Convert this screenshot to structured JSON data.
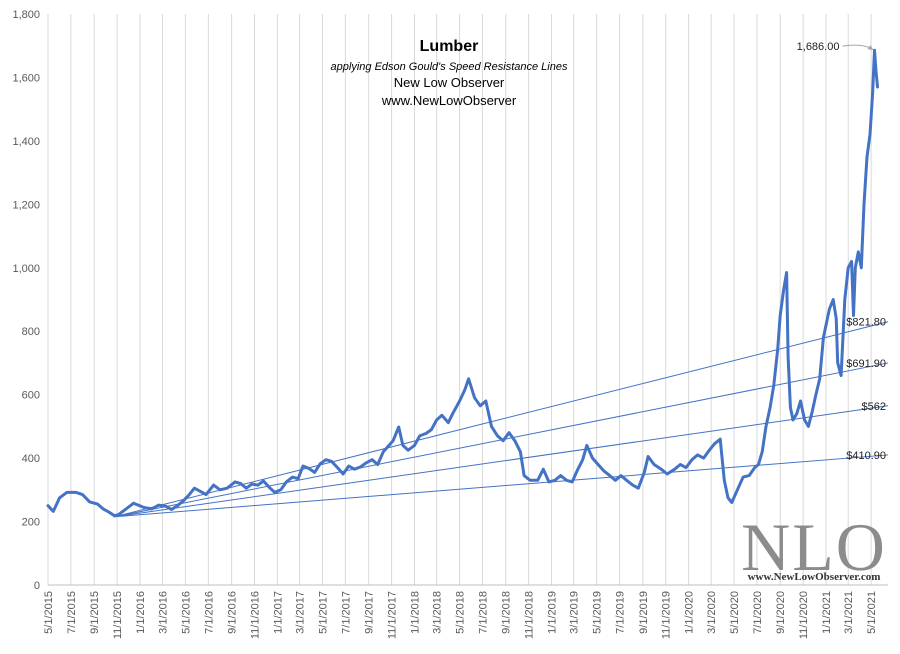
{
  "chart_data": {
    "type": "line",
    "title": "Lumber",
    "subtitle": "applying Edson  Gould's Speed Resistance  Lines",
    "credit_name": "New Low Observer",
    "credit_url": "www.NewLowObserver",
    "ylim": [
      0,
      1800
    ],
    "yticks": [
      "0",
      "200",
      "400",
      "600",
      "800",
      "1,000",
      "1,200",
      "1,400",
      "1,600",
      "1,800"
    ],
    "ytick_values": [
      0,
      200,
      400,
      600,
      800,
      1000,
      1200,
      1400,
      1600,
      1800
    ],
    "xlim": [
      "2015-05-01",
      "2021-06-15"
    ],
    "xticks": [
      "5/1/2015",
      "7/1/2015",
      "9/1/2015",
      "11/1/2015",
      "1/1/2016",
      "3/1/2016",
      "5/1/2016",
      "7/1/2016",
      "9/1/2016",
      "11/1/2016",
      "1/1/2017",
      "3/1/2017",
      "5/1/2017",
      "7/1/2017",
      "9/1/2017",
      "11/1/2017",
      "1/1/2018",
      "3/1/2018",
      "5/1/2018",
      "7/1/2018",
      "9/1/2018",
      "11/1/2018",
      "1/1/2019",
      "3/1/2019",
      "5/1/2019",
      "7/1/2019",
      "9/1/2019",
      "11/1/2019",
      "1/1/2020",
      "3/1/2020",
      "5/1/2020",
      "7/1/2020",
      "9/1/2020",
      "11/1/2020",
      "1/1/2021",
      "3/1/2021",
      "5/1/2021"
    ],
    "grid": "vertical",
    "series": [
      {
        "color": "#4472C4",
        "points": [
          [
            "2015-05-01",
            250
          ],
          [
            "2015-05-15",
            232
          ],
          [
            "2015-06-01",
            275
          ],
          [
            "2015-06-20",
            292
          ],
          [
            "2015-07-15",
            292
          ],
          [
            "2015-08-01",
            285
          ],
          [
            "2015-08-20",
            262
          ],
          [
            "2015-09-10",
            255
          ],
          [
            "2015-09-25",
            240
          ],
          [
            "2015-10-10",
            230
          ],
          [
            "2015-10-25",
            218
          ],
          [
            "2015-11-05",
            222
          ],
          [
            "2015-11-25",
            240
          ],
          [
            "2015-12-15",
            258
          ],
          [
            "2016-01-10",
            245
          ],
          [
            "2016-02-01",
            240
          ],
          [
            "2016-02-20",
            252
          ],
          [
            "2016-03-10",
            248
          ],
          [
            "2016-03-25",
            238
          ],
          [
            "2016-04-10",
            250
          ],
          [
            "2016-04-25",
            265
          ],
          [
            "2016-05-10",
            283
          ],
          [
            "2016-05-25",
            305
          ],
          [
            "2016-06-10",
            295
          ],
          [
            "2016-06-25",
            285
          ],
          [
            "2016-07-15",
            315
          ],
          [
            "2016-08-01",
            300
          ],
          [
            "2016-08-20",
            305
          ],
          [
            "2016-09-10",
            325
          ],
          [
            "2016-09-25",
            320
          ],
          [
            "2016-10-10",
            305
          ],
          [
            "2016-10-25",
            318
          ],
          [
            "2016-11-10",
            315
          ],
          [
            "2016-11-25",
            328
          ],
          [
            "2016-12-10",
            308
          ],
          [
            "2016-12-25",
            292
          ],
          [
            "2017-01-10",
            300
          ],
          [
            "2017-01-25",
            325
          ],
          [
            "2017-02-10",
            340
          ],
          [
            "2017-02-25",
            335
          ],
          [
            "2017-03-10",
            375
          ],
          [
            "2017-03-25",
            368
          ],
          [
            "2017-04-10",
            355
          ],
          [
            "2017-04-25",
            382
          ],
          [
            "2017-05-10",
            395
          ],
          [
            "2017-05-25",
            390
          ],
          [
            "2017-06-10",
            370
          ],
          [
            "2017-06-25",
            350
          ],
          [
            "2017-07-10",
            375
          ],
          [
            "2017-07-25",
            365
          ],
          [
            "2017-08-10",
            372
          ],
          [
            "2017-08-25",
            385
          ],
          [
            "2017-09-10",
            395
          ],
          [
            "2017-09-25",
            380
          ],
          [
            "2017-10-10",
            420
          ],
          [
            "2017-10-25",
            440
          ],
          [
            "2017-11-05",
            455
          ],
          [
            "2017-11-20",
            498
          ],
          [
            "2017-12-01",
            440
          ],
          [
            "2017-12-15",
            425
          ],
          [
            "2018-01-01",
            440
          ],
          [
            "2018-01-15",
            470
          ],
          [
            "2018-02-01",
            478
          ],
          [
            "2018-02-15",
            490
          ],
          [
            "2018-03-01",
            520
          ],
          [
            "2018-03-15",
            535
          ],
          [
            "2018-04-01",
            512
          ],
          [
            "2018-04-15",
            545
          ],
          [
            "2018-05-01",
            580
          ],
          [
            "2018-05-15",
            615
          ],
          [
            "2018-05-25",
            650
          ],
          [
            "2018-06-10",
            590
          ],
          [
            "2018-06-25",
            565
          ],
          [
            "2018-07-10",
            580
          ],
          [
            "2018-07-25",
            500
          ],
          [
            "2018-08-10",
            470
          ],
          [
            "2018-08-25",
            455
          ],
          [
            "2018-09-10",
            480
          ],
          [
            "2018-09-25",
            455
          ],
          [
            "2018-10-10",
            420
          ],
          [
            "2018-10-20",
            345
          ],
          [
            "2018-11-05",
            330
          ],
          [
            "2018-11-25",
            330
          ],
          [
            "2018-12-10",
            365
          ],
          [
            "2018-12-25",
            325
          ],
          [
            "2019-01-10",
            330
          ],
          [
            "2019-01-25",
            345
          ],
          [
            "2019-02-10",
            330
          ],
          [
            "2019-02-25",
            325
          ],
          [
            "2019-03-10",
            360
          ],
          [
            "2019-03-25",
            395
          ],
          [
            "2019-04-05",
            440
          ],
          [
            "2019-04-20",
            400
          ],
          [
            "2019-05-05",
            380
          ],
          [
            "2019-05-20",
            360
          ],
          [
            "2019-06-05",
            345
          ],
          [
            "2019-06-20",
            330
          ],
          [
            "2019-07-05",
            345
          ],
          [
            "2019-07-20",
            330
          ],
          [
            "2019-08-05",
            315
          ],
          [
            "2019-08-20",
            305
          ],
          [
            "2019-09-05",
            355
          ],
          [
            "2019-09-15",
            405
          ],
          [
            "2019-10-01",
            380
          ],
          [
            "2019-10-20",
            365
          ],
          [
            "2019-11-05",
            350
          ],
          [
            "2019-11-25",
            365
          ],
          [
            "2019-12-10",
            380
          ],
          [
            "2019-12-25",
            370
          ],
          [
            "2020-01-10",
            395
          ],
          [
            "2020-01-25",
            410
          ],
          [
            "2020-02-10",
            400
          ],
          [
            "2020-02-25",
            425
          ],
          [
            "2020-03-10",
            445
          ],
          [
            "2020-03-25",
            460
          ],
          [
            "2020-04-05",
            330
          ],
          [
            "2020-04-15",
            275
          ],
          [
            "2020-04-25",
            260
          ],
          [
            "2020-05-10",
            300
          ],
          [
            "2020-05-25",
            340
          ],
          [
            "2020-06-10",
            345
          ],
          [
            "2020-06-25",
            370
          ],
          [
            "2020-07-05",
            380
          ],
          [
            "2020-07-15",
            420
          ],
          [
            "2020-07-25",
            500
          ],
          [
            "2020-08-05",
            560
          ],
          [
            "2020-08-15",
            630
          ],
          [
            "2020-08-25",
            740
          ],
          [
            "2020-09-01",
            850
          ],
          [
            "2020-09-10",
            930
          ],
          [
            "2020-09-18",
            985
          ],
          [
            "2020-09-22",
            720
          ],
          [
            "2020-09-28",
            560
          ],
          [
            "2020-10-05",
            520
          ],
          [
            "2020-10-15",
            540
          ],
          [
            "2020-10-25",
            580
          ],
          [
            "2020-11-05",
            520
          ],
          [
            "2020-11-15",
            500
          ],
          [
            "2020-11-25",
            545
          ],
          [
            "2020-12-05",
            600
          ],
          [
            "2020-12-15",
            650
          ],
          [
            "2020-12-25",
            780
          ],
          [
            "2021-01-10",
            870
          ],
          [
            "2021-01-20",
            900
          ],
          [
            "2021-01-28",
            840
          ],
          [
            "2021-02-01",
            700
          ],
          [
            "2021-02-10",
            660
          ],
          [
            "2021-02-20",
            900
          ],
          [
            "2021-03-01",
            1000
          ],
          [
            "2021-03-10",
            1020
          ],
          [
            "2021-03-15",
            850
          ],
          [
            "2021-03-20",
            1000
          ],
          [
            "2021-03-28",
            1050
          ],
          [
            "2021-04-05",
            1000
          ],
          [
            "2021-04-12",
            1200
          ],
          [
            "2021-04-20",
            1350
          ],
          [
            "2021-04-28",
            1420
          ],
          [
            "2021-05-05",
            1550
          ],
          [
            "2021-05-10",
            1686
          ],
          [
            "2021-05-14",
            1620
          ],
          [
            "2021-05-18",
            1570
          ]
        ]
      }
    ],
    "resistance_lines": [
      {
        "label": "$821.80",
        "start": [
          "2015-10-25",
          215
        ],
        "end": [
          "2021-06-15",
          830
        ]
      },
      {
        "label": "$691.90",
        "start": [
          "2015-10-25",
          215
        ],
        "end": [
          "2021-06-15",
          700
        ]
      },
      {
        "label": "$562",
        "start": [
          "2015-10-25",
          215
        ],
        "end": [
          "2021-06-15",
          565
        ]
      },
      {
        "label": "$410.90",
        "start": [
          "2015-10-25",
          215
        ],
        "end": [
          "2021-06-15",
          410
        ]
      }
    ],
    "annotations": [
      {
        "label": "1,686.00",
        "point": [
          "2021-05-10",
          1686
        ]
      }
    ]
  },
  "watermark": {
    "logo": "NLO",
    "url": "www.NewLowObserver.com"
  },
  "colors": {
    "line": "#4472C4",
    "resistance": "#4472C4",
    "grid": "#d9d9d9",
    "axis": "#bfbfbf"
  }
}
